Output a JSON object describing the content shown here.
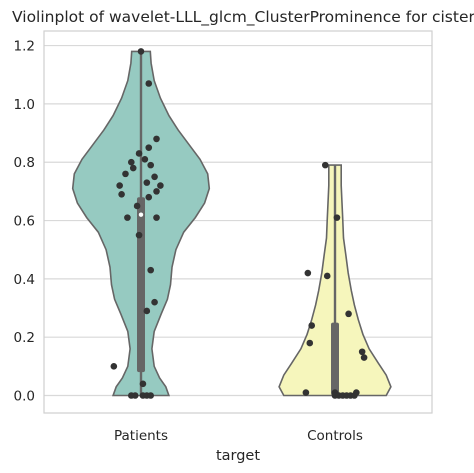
{
  "chart_data": {
    "type": "violin",
    "title": "Violinplot of wavelet-LLL_glcm_ClusterProminence for cistern",
    "xlabel": "target",
    "ylabel": "",
    "ylim": [
      -0.06,
      1.25
    ],
    "yticks": [
      "0.0",
      "0.2",
      "0.4",
      "0.6",
      "0.8",
      "1.0",
      "1.2"
    ],
    "grid": true,
    "categories": [
      "Patients",
      "Controls"
    ],
    "colors": {
      "Patients": "#96cac1",
      "Controls": "#f6f6bc"
    },
    "series": [
      {
        "category": "Patients",
        "range": [
          0.0,
          1.18
        ],
        "box": {
          "q1": 0.08,
          "median": 0.62,
          "q3": 0.68
        },
        "density": [
          [
            0.0,
            0.36
          ],
          [
            0.03,
            0.32
          ],
          [
            0.06,
            0.24
          ],
          [
            0.1,
            0.17
          ],
          [
            0.16,
            0.14
          ],
          [
            0.22,
            0.17
          ],
          [
            0.28,
            0.26
          ],
          [
            0.33,
            0.34
          ],
          [
            0.38,
            0.38
          ],
          [
            0.44,
            0.4
          ],
          [
            0.5,
            0.45
          ],
          [
            0.56,
            0.55
          ],
          [
            0.61,
            0.7
          ],
          [
            0.66,
            0.82
          ],
          [
            0.71,
            0.88
          ],
          [
            0.76,
            0.86
          ],
          [
            0.81,
            0.76
          ],
          [
            0.86,
            0.62
          ],
          [
            0.91,
            0.48
          ],
          [
            0.96,
            0.36
          ],
          [
            1.02,
            0.25
          ],
          [
            1.08,
            0.17
          ],
          [
            1.14,
            0.13
          ],
          [
            1.18,
            0.12
          ]
        ],
        "points": [
          [
            0.0,
            1.18
          ],
          [
            0.04,
            1.07
          ],
          [
            0.08,
            0.88
          ],
          [
            0.04,
            0.85
          ],
          [
            -0.01,
            0.83
          ],
          [
            0.02,
            0.81
          ],
          [
            -0.05,
            0.8
          ],
          [
            0.05,
            0.79
          ],
          [
            -0.04,
            0.78
          ],
          [
            -0.08,
            0.76
          ],
          [
            0.07,
            0.75
          ],
          [
            0.03,
            0.73
          ],
          [
            0.1,
            0.72
          ],
          [
            -0.11,
            0.72
          ],
          [
            0.08,
            0.7
          ],
          [
            -0.1,
            0.69
          ],
          [
            0.04,
            0.68
          ],
          [
            -0.02,
            0.65
          ],
          [
            -0.07,
            0.61
          ],
          [
            0.08,
            0.61
          ],
          [
            -0.01,
            0.55
          ],
          [
            0.05,
            0.43
          ],
          [
            0.07,
            0.32
          ],
          [
            0.03,
            0.29
          ],
          [
            -0.14,
            0.1
          ],
          [
            0.01,
            0.04
          ],
          [
            -0.05,
            0.0
          ],
          [
            -0.03,
            0.0
          ],
          [
            0.01,
            0.0
          ],
          [
            0.03,
            0.0
          ],
          [
            0.05,
            0.0
          ]
        ]
      },
      {
        "category": "Controls",
        "range": [
          0.0,
          0.79
        ],
        "box": {
          "q1": 0.0,
          "median": 0.01,
          "q3": 0.25
        },
        "density": [
          [
            0.0,
            0.66
          ],
          [
            0.03,
            0.72
          ],
          [
            0.07,
            0.66
          ],
          [
            0.11,
            0.56
          ],
          [
            0.16,
            0.44
          ],
          [
            0.21,
            0.36
          ],
          [
            0.26,
            0.3
          ],
          [
            0.31,
            0.25
          ],
          [
            0.36,
            0.21
          ],
          [
            0.42,
            0.17
          ],
          [
            0.48,
            0.14
          ],
          [
            0.54,
            0.11
          ],
          [
            0.6,
            0.1
          ],
          [
            0.66,
            0.09
          ],
          [
            0.72,
            0.08
          ],
          [
            0.76,
            0.08
          ],
          [
            0.79,
            0.08
          ]
        ],
        "points": [
          [
            -0.05,
            0.79
          ],
          [
            0.01,
            0.61
          ],
          [
            -0.14,
            0.42
          ],
          [
            -0.04,
            0.41
          ],
          [
            0.07,
            0.28
          ],
          [
            -0.12,
            0.24
          ],
          [
            0.14,
            0.15
          ],
          [
            -0.13,
            0.18
          ],
          [
            0.15,
            0.13
          ],
          [
            -0.15,
            0.01
          ],
          [
            0.0,
            0.01
          ],
          [
            0.11,
            0.01
          ],
          [
            0.0,
            0.0
          ],
          [
            0.02,
            0.0
          ],
          [
            0.04,
            0.0
          ],
          [
            0.06,
            0.0
          ],
          [
            0.08,
            0.0
          ],
          [
            0.1,
            0.0
          ]
        ]
      }
    ]
  }
}
